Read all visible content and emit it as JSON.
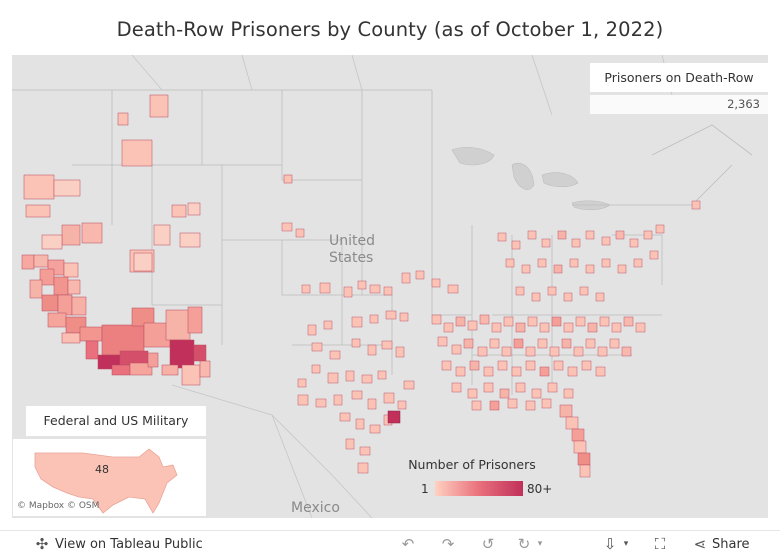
{
  "title": "Death-Row Prisoners by County (as of October 1, 2022)",
  "map": {
    "country_label_line1": "United",
    "country_label_line2": "States",
    "mexico_label": "Mexico",
    "attribution": "© Mapbox  © OSM",
    "colors": {
      "background": "#e3e3e3",
      "low": "#ffd1c1",
      "high": "#c0305a",
      "border": "#b0b0b0"
    }
  },
  "kpi": {
    "title": "Prisoners on Death-Row",
    "value": "2,363"
  },
  "inset": {
    "title": "Federal and US Military",
    "value": "48"
  },
  "legend": {
    "title": "Number of Prisoners",
    "min": "1",
    "max": "80+"
  },
  "toolbar": {
    "view_label": "View on Tableau Public",
    "share_label": "Share"
  }
}
